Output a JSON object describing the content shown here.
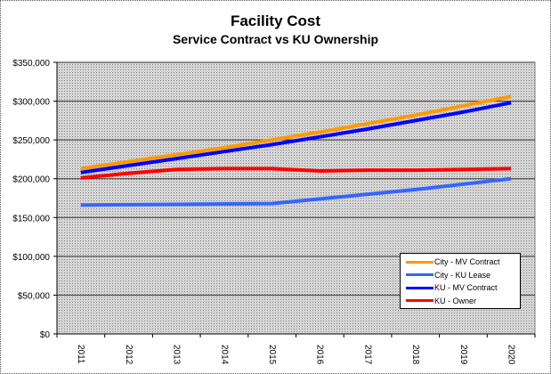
{
  "chart_data": {
    "type": "line",
    "title": "Facility Cost",
    "subtitle": "Service Contract vs KU Ownership",
    "xlabel": "",
    "ylabel": "",
    "categories": [
      "2011",
      "2012",
      "2013",
      "2014",
      "2015",
      "2016",
      "2017",
      "2018",
      "2019",
      "2020"
    ],
    "ylim": [
      0,
      350000
    ],
    "yticks": [
      0,
      50000,
      100000,
      150000,
      200000,
      250000,
      300000,
      350000
    ],
    "ytick_labels": [
      "$0",
      "$50,000",
      "$100,000",
      "$150,000",
      "$200,000",
      "$250,000",
      "$300,000",
      "$350,000"
    ],
    "grid": true,
    "legend_position": "bottom-right",
    "series": [
      {
        "name": "City - MV Contract",
        "color": "#FF9900",
        "values": [
          213000,
          222000,
          231000,
          240000,
          250000,
          260000,
          271000,
          282000,
          294000,
          306000
        ]
      },
      {
        "name": "City - KU Lease",
        "color": "#3366FF",
        "values": [
          166000,
          166500,
          167000,
          167500,
          168000,
          174000,
          180000,
          186000,
          193000,
          200000
        ]
      },
      {
        "name": "KU - MV Contract",
        "color": "#0000FF",
        "values": [
          208000,
          217000,
          226000,
          235000,
          244000,
          254000,
          264000,
          275000,
          286000,
          298000
        ]
      },
      {
        "name": "KU - Owner",
        "color": "#FF0000",
        "values": [
          201000,
          207000,
          212000,
          213000,
          213000,
          210000,
          211000,
          211000,
          212000,
          213000
        ]
      }
    ]
  }
}
